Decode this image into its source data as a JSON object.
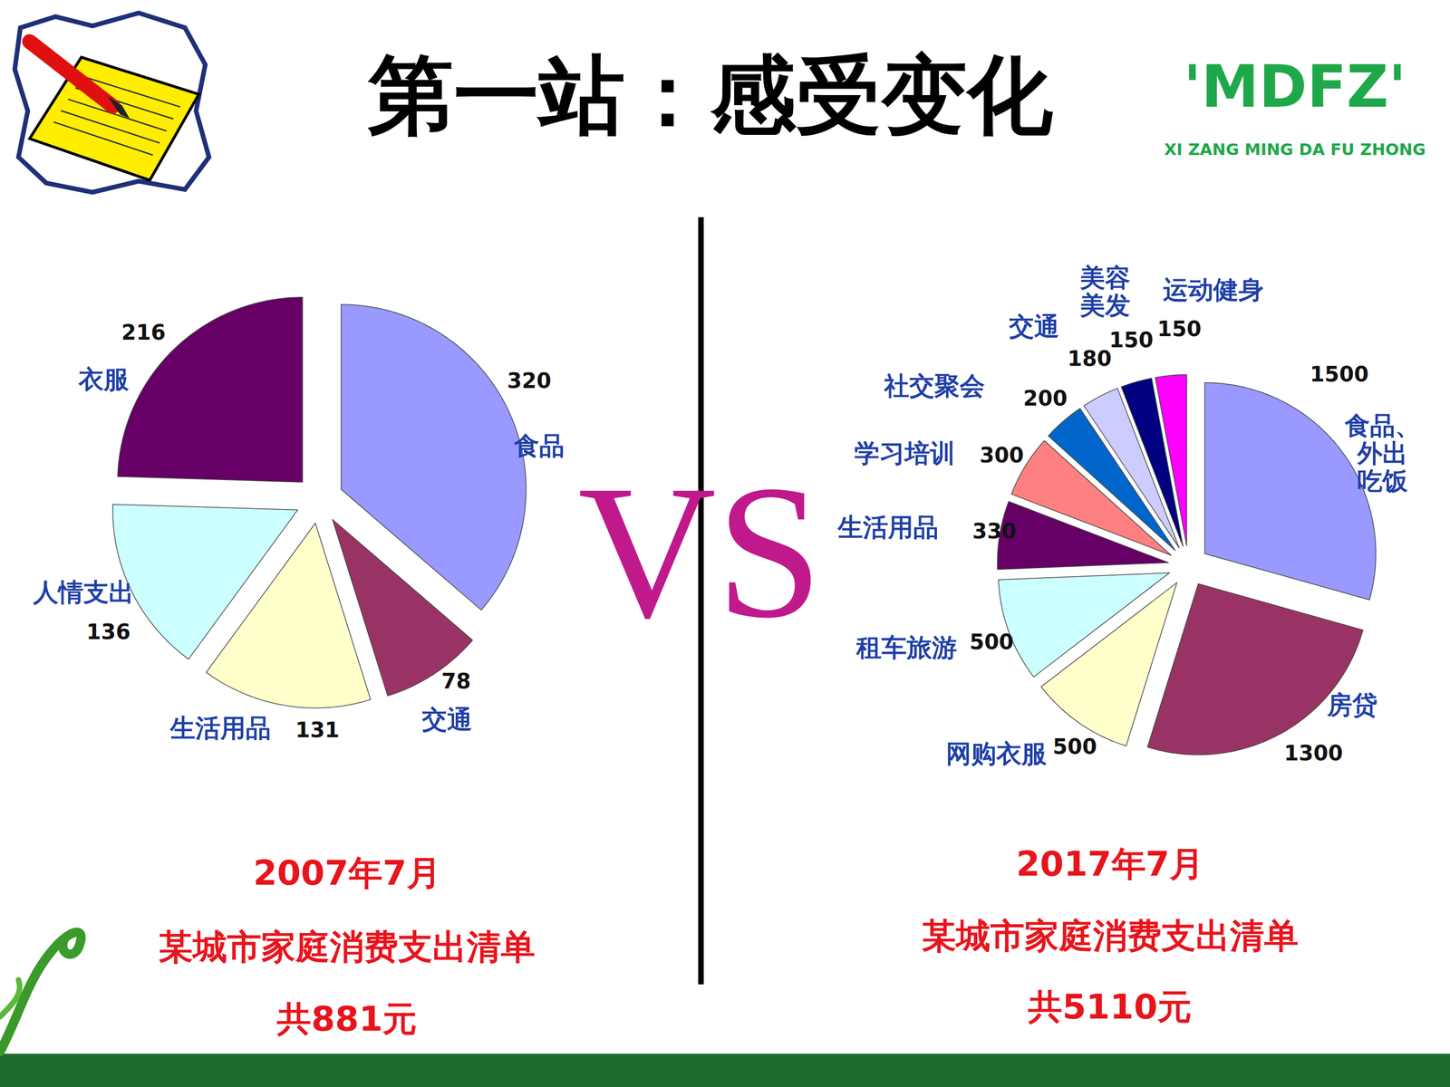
{
  "slide": {
    "title": "第一站：感受变化",
    "logo": "'MDFZ'",
    "logo_subtitle": "XI ZANG MING DA FU ZHONG",
    "vs": "VS"
  },
  "chart_data": [
    {
      "type": "pie",
      "title": "2007年7月",
      "subtitle": "某城市家庭消费支出清单",
      "annotations": [
        "共881元"
      ],
      "categories": [
        "食品",
        "交通",
        "生活用品",
        "人情支出",
        "衣服"
      ],
      "values": [
        320,
        78,
        131,
        136,
        216
      ],
      "colors": [
        "#9999FF",
        "#993366",
        "#FFFFCC",
        "#CCFFFF",
        "#660066"
      ],
      "data_labels": true
    },
    {
      "type": "pie",
      "title": "2017年7月",
      "subtitle": "某城市家庭消费支出清单",
      "annotations": [
        "共5110元"
      ],
      "categories": [
        "食品、外出吃饭",
        "房贷",
        "网购衣服",
        "租车旅游",
        "生活用品",
        "学习培训",
        "社交聚会",
        "交通",
        "美容美发",
        "运动健身"
      ],
      "values": [
        1500,
        1300,
        500,
        500,
        330,
        300,
        200,
        180,
        150,
        150
      ],
      "colors": [
        "#9999FF",
        "#993366",
        "#FFFFCC",
        "#CCFFFF",
        "#660066",
        "#FF8080",
        "#0066CC",
        "#CCCCFF",
        "#000080",
        "#FF00FF"
      ],
      "data_labels": true
    }
  ]
}
